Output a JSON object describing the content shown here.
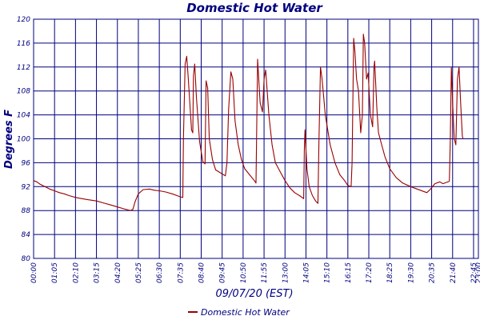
{
  "chart_data": {
    "type": "line",
    "title": "Domestic Hot Water",
    "xlabel": "09/07/20 (EST)",
    "ylabel": "Degrees F",
    "ylim": [
      80,
      120
    ],
    "xlim_minutes": [
      0,
      1380
    ],
    "grid": true,
    "legend_position": "bottom",
    "y_ticks": [
      "80",
      "84",
      "88",
      "92",
      "96",
      "100",
      "104",
      "108",
      "112",
      "116",
      "120"
    ],
    "x_ticks": [
      "00:00",
      "01:05",
      "02:10",
      "03:15",
      "04:20",
      "05:25",
      "06:30",
      "07:35",
      "08:40",
      "09:45",
      "10:50",
      "11:55",
      "13:00",
      "14:05",
      "15:10",
      "16:15",
      "17:20",
      "18:25",
      "19:30",
      "20:35",
      "21:40",
      "22:45",
      "23:00"
    ],
    "series": [
      {
        "name": "Domestic Hot Water",
        "color": "#990000",
        "points": [
          [
            "00:00",
            93.0
          ],
          [
            "00:10",
            92.8
          ],
          [
            "00:20",
            92.4
          ],
          [
            "00:35",
            92.0
          ],
          [
            "00:50",
            91.6
          ],
          [
            "01:05",
            91.3
          ],
          [
            "01:20",
            91.0
          ],
          [
            "01:35",
            90.8
          ],
          [
            "01:50",
            90.5
          ],
          [
            "02:10",
            90.2
          ],
          [
            "02:30",
            90.0
          ],
          [
            "02:50",
            89.8
          ],
          [
            "03:15",
            89.6
          ],
          [
            "03:35",
            89.3
          ],
          [
            "03:55",
            89.0
          ],
          [
            "04:20",
            88.6
          ],
          [
            "04:40",
            88.3
          ],
          [
            "05:00",
            88.0
          ],
          [
            "05:08",
            88.2
          ],
          [
            "05:15",
            89.5
          ],
          [
            "05:25",
            90.8
          ],
          [
            "05:40",
            91.5
          ],
          [
            "06:00",
            91.6
          ],
          [
            "06:15",
            91.4
          ],
          [
            "06:30",
            91.3
          ],
          [
            "06:50",
            91.1
          ],
          [
            "07:10",
            90.8
          ],
          [
            "07:25",
            90.5
          ],
          [
            "07:35",
            90.3
          ],
          [
            "07:43",
            90.2
          ],
          [
            "07:45",
            100.0
          ],
          [
            "07:50",
            112.5
          ],
          [
            "07:55",
            113.8
          ],
          [
            "08:00",
            110.0
          ],
          [
            "08:10",
            101.5
          ],
          [
            "08:14",
            101.0
          ],
          [
            "08:16",
            110.5
          ],
          [
            "08:20",
            112.5
          ],
          [
            "08:25",
            107.0
          ],
          [
            "08:35",
            99.5
          ],
          [
            "08:45",
            96.2
          ],
          [
            "08:52",
            95.8
          ],
          [
            "08:55",
            109.7
          ],
          [
            "09:00",
            108.5
          ],
          [
            "09:05",
            100.0
          ],
          [
            "09:15",
            96.5
          ],
          [
            "09:25",
            94.8
          ],
          [
            "09:40",
            94.3
          ],
          [
            "09:55",
            93.8
          ],
          [
            "10:00",
            96.0
          ],
          [
            "10:05",
            105.0
          ],
          [
            "10:12",
            111.2
          ],
          [
            "10:18",
            110.0
          ],
          [
            "10:25",
            103.0
          ],
          [
            "10:35",
            99.0
          ],
          [
            "10:45",
            96.5
          ],
          [
            "10:55",
            95.0
          ],
          [
            "11:10",
            94.0
          ],
          [
            "11:25",
            93.0
          ],
          [
            "11:30",
            92.6
          ],
          [
            "11:35",
            113.3
          ],
          [
            "11:43",
            106.0
          ],
          [
            "11:50",
            104.5
          ],
          [
            "11:55",
            110.0
          ],
          [
            "12:00",
            111.5
          ],
          [
            "12:10",
            104.0
          ],
          [
            "12:20",
            99.0
          ],
          [
            "12:30",
            96.0
          ],
          [
            "12:45",
            94.5
          ],
          [
            "13:00",
            93.0
          ],
          [
            "13:15",
            91.8
          ],
          [
            "13:30",
            91.0
          ],
          [
            "13:45",
            90.5
          ],
          [
            "13:58",
            90.0
          ],
          [
            "14:00",
            98.0
          ],
          [
            "14:02",
            101.5
          ],
          [
            "14:08",
            95.0
          ],
          [
            "14:15",
            92.0
          ],
          [
            "14:25",
            90.5
          ],
          [
            "14:35",
            89.6
          ],
          [
            "14:42",
            89.2
          ],
          [
            "14:45",
            99.0
          ],
          [
            "14:50",
            112.0
          ],
          [
            "14:55",
            110.0
          ],
          [
            "15:05",
            104.0
          ],
          [
            "15:20",
            99.0
          ],
          [
            "15:35",
            96.0
          ],
          [
            "15:50",
            94.0
          ],
          [
            "16:05",
            93.0
          ],
          [
            "16:15",
            92.2
          ],
          [
            "16:25",
            92.0
          ],
          [
            "16:28",
            96.0
          ],
          [
            "16:33",
            116.8
          ],
          [
            "16:37",
            114.5
          ],
          [
            "16:42",
            110.0
          ],
          [
            "16:48",
            108.0
          ],
          [
            "16:55",
            101.0
          ],
          [
            "17:00",
            104.0
          ],
          [
            "17:03",
            117.5
          ],
          [
            "17:07",
            116.0
          ],
          [
            "17:13",
            110.0
          ],
          [
            "17:18",
            111.0
          ],
          [
            "17:25",
            104.0
          ],
          [
            "17:32",
            102.0
          ],
          [
            "17:36",
            112.0
          ],
          [
            "17:38",
            113.0
          ],
          [
            "17:45",
            105.0
          ],
          [
            "17:50",
            101.0
          ],
          [
            "18:00",
            99.0
          ],
          [
            "18:10",
            97.0
          ],
          [
            "18:25",
            95.0
          ],
          [
            "18:45",
            93.5
          ],
          [
            "19:05",
            92.6
          ],
          [
            "19:30",
            92.0
          ],
          [
            "19:50",
            91.6
          ],
          [
            "20:10",
            91.2
          ],
          [
            "20:20",
            91.0
          ],
          [
            "20:30",
            91.5
          ],
          [
            "20:45",
            92.5
          ],
          [
            "21:00",
            92.8
          ],
          [
            "21:10",
            92.5
          ],
          [
            "21:20",
            92.7
          ],
          [
            "21:30",
            92.9
          ],
          [
            "21:33",
            100.0
          ],
          [
            "21:36",
            111.9
          ],
          [
            "21:40",
            106.0
          ],
          [
            "21:45",
            100.0
          ],
          [
            "21:50",
            99.0
          ],
          [
            "21:55",
            110.0
          ],
          [
            "22:00",
            112.0
          ],
          [
            "22:05",
            106.0
          ],
          [
            "22:10",
            100.5
          ],
          [
            "22:12",
            100.0
          ]
        ]
      }
    ]
  }
}
